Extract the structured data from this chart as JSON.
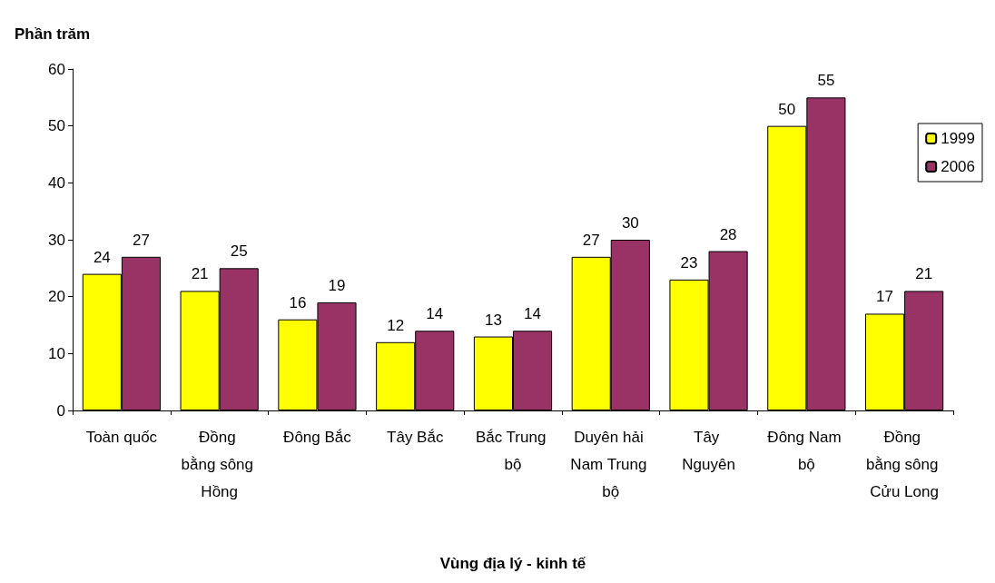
{
  "chart_data": {
    "type": "bar",
    "ylabel": "Phần trăm",
    "xlabel": "Vùng địa lý - kinh tế",
    "categories": [
      "Toàn quốc",
      "Đồng bằng sông Hồng",
      "Đông Bắc",
      "Tây Bắc",
      "Bắc Trung bộ",
      "Duyên hải Nam Trung bộ",
      "Tây Nguyên",
      "Đông Nam bộ",
      "Đồng bằng sông Cửu Long"
    ],
    "series": [
      {
        "name": "1999",
        "color": "#ffff00",
        "values": [
          24,
          21,
          16,
          12,
          13,
          27,
          23,
          50,
          17
        ]
      },
      {
        "name": "2006",
        "color": "#993366",
        "values": [
          27,
          25,
          19,
          14,
          14,
          30,
          28,
          55,
          21
        ]
      }
    ],
    "ylim": [
      0,
      60
    ],
    "yticks": [
      0,
      10,
      20,
      30,
      40,
      50,
      60
    ],
    "grid": false,
    "legend": "right",
    "data_labels": true
  }
}
